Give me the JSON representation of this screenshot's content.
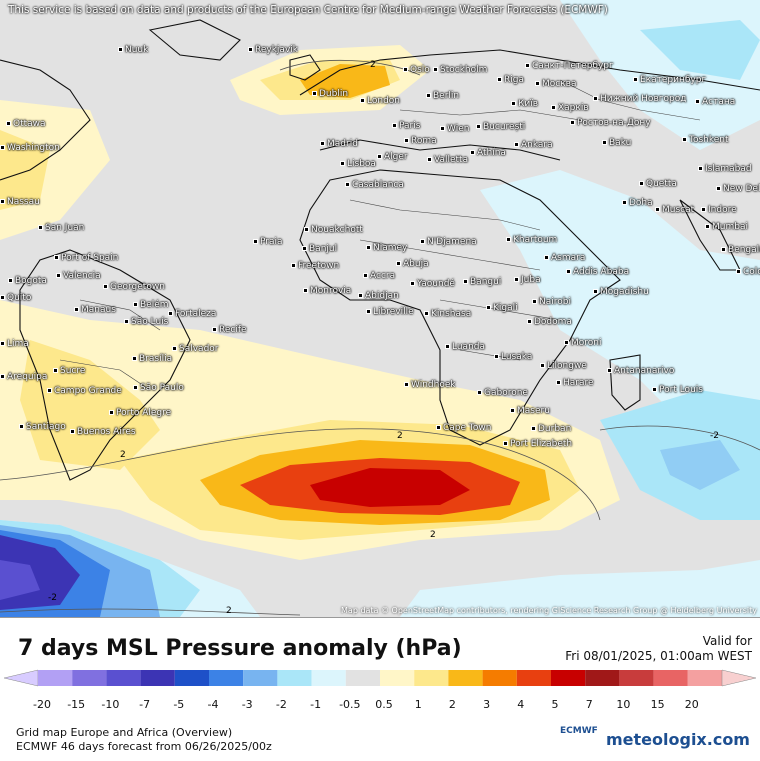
{
  "notice": "This service is based on data and products of the European Centre for Medium-range Weather Forecasts (ECMWF)",
  "attribution": "Map data © OpenStreetMap contributors, rendering GIScience Research Group @ Heidelberg University",
  "title": "7 days MSL Pressure anomaly (hPa)",
  "valid_label": "Valid for",
  "valid_date": "Fri 08/01/2025, 01:00am WEST",
  "scale": {
    "colors": [
      "#b2a0f4",
      "#8070e0",
      "#5a50d0",
      "#3c34b4",
      "#1e50c8",
      "#3c82e6",
      "#78b4f0",
      "#aae6f8",
      "#dcf5fc",
      "#e2e2e2",
      "#fff6c8",
      "#fde88c",
      "#f9b818",
      "#f57c00",
      "#e84010",
      "#c80000",
      "#a01818",
      "#c83c3c",
      "#e86464",
      "#f4a0a0"
    ],
    "ticks": [
      "-20",
      "-15",
      "-10",
      "-7",
      "-5",
      "-4",
      "-3",
      "-2",
      "-1",
      "-0.5",
      "0.5",
      "1",
      "2",
      "3",
      "4",
      "5",
      "7",
      "10",
      "15",
      "20"
    ]
  },
  "footer": {
    "line1": "Grid map Europe and Africa (Overview)",
    "line2": "ECMWF 46 days forecast from  06/26/2025/00z"
  },
  "logos": {
    "ecmwf": "ECMWF",
    "brand": "meteologix.com"
  },
  "isobar_labels": [
    "2",
    "2",
    "2",
    "-2",
    "-2",
    "2",
    "2"
  ],
  "cities": [
    "Nuuk",
    "Reykjavik",
    "Oslo",
    "Stockholm",
    "Санкт-Петербург",
    "Dublin",
    "London",
    "Riga",
    "Москва",
    "Екатеринбург",
    "Berlin",
    "Київ",
    "Харків",
    "Нижний Новгород",
    "Астана",
    "Ottawa",
    "Washington",
    "Paris",
    "Wien",
    "București",
    "Ростов-на-Дону",
    "Toshkent",
    "Madrid",
    "Roma",
    "Ankara",
    "Baku",
    "Lisboa",
    "Alger",
    "Valletta",
    "Athína",
    "Islamabad",
    "Casablanca",
    "Quetta",
    "New Delhi",
    "Nassau",
    "Doha",
    "Muscat",
    "Indore",
    "San Juan",
    "Nouakchott",
    "Praia",
    "Banjul",
    "Niamey",
    "N'Djamena",
    "Khartoum",
    "Mumbai",
    "Bengaluru",
    "Port of Spain",
    "Freetown",
    "Abuja",
    "Asmara",
    "Addis Ababa",
    "Colombo",
    "Bogota",
    "Valencia",
    "Monrovia",
    "Accra",
    "Yaoundé",
    "Bangui",
    "Juba",
    "Mogadishu",
    "Quito",
    "Georgetown",
    "Abidjan",
    "Libreville",
    "Kigali",
    "Nairobi",
    "Manaus",
    "Belém",
    "São Luís",
    "Fortaleza",
    "Kinshasa",
    "Dodoma",
    "Recife",
    "Lima",
    "Brasília",
    "Salvador",
    "Luanda",
    "Moroni",
    "Sucre",
    "Lusaka",
    "Lilongwe",
    "Antananarivo",
    "Arequipa",
    "Windhoek",
    "Harare",
    "Port Louis",
    "Campo Grande",
    "São Paulo",
    "Gaborone",
    "Maseru",
    "Santiago",
    "Porto Alegre",
    "Buenos Aires",
    "Cape Town",
    "Durban",
    "Port Elizabeth"
  ]
}
